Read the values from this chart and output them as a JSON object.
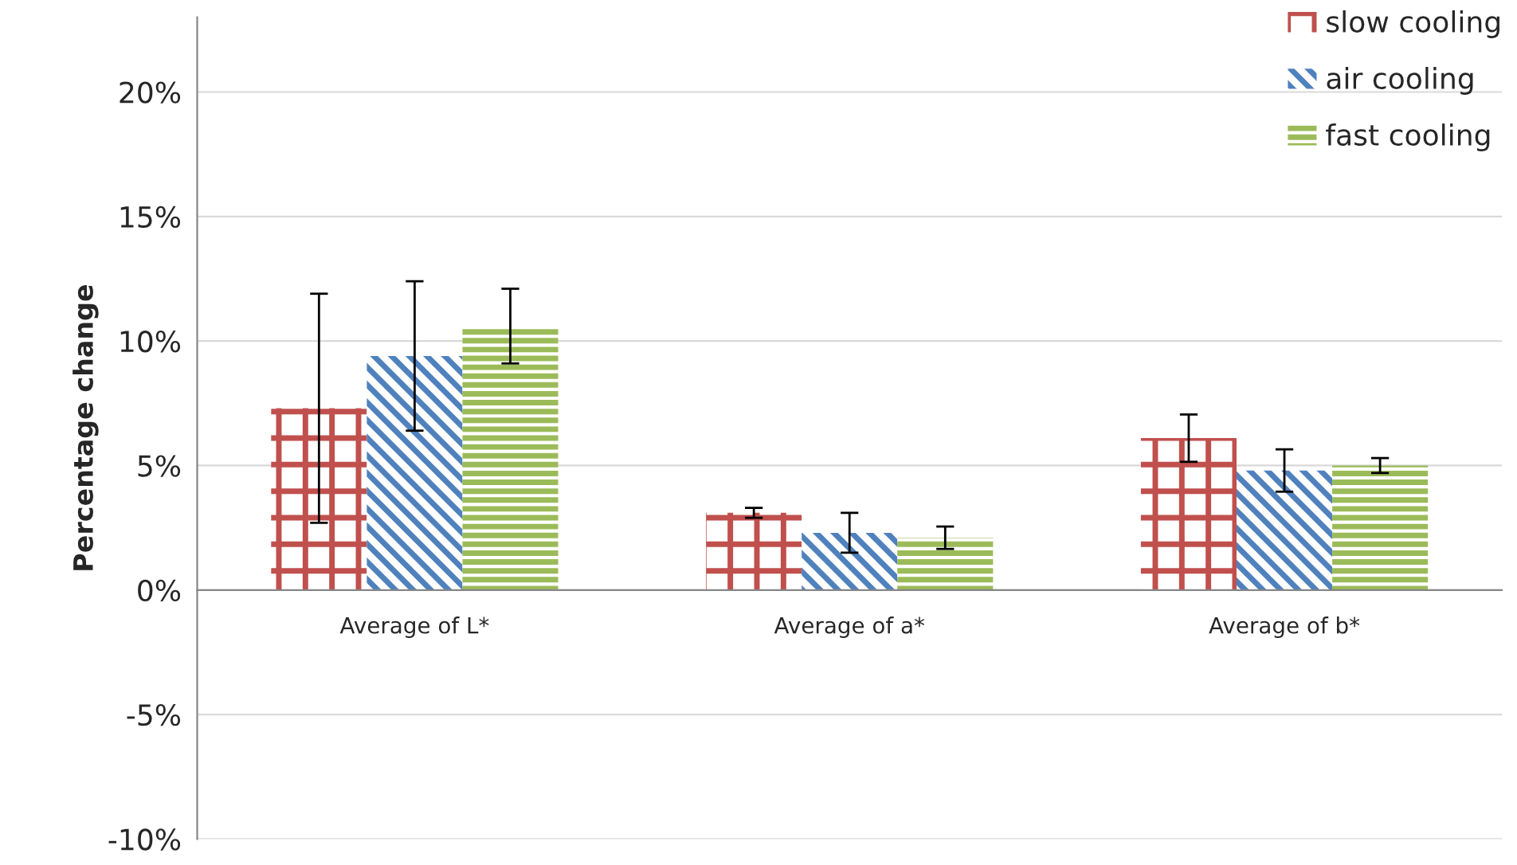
{
  "chart_data": {
    "type": "bar",
    "ylabel": "Percentage change",
    "categories": [
      "Average of L*",
      "Average of a*",
      "Average of b*"
    ],
    "series": [
      {
        "name": "slow cooling",
        "color": "#c0504d",
        "values": [
          7.3,
          3.1,
          6.1
        ],
        "errors": [
          4.6,
          0.2,
          0.95
        ]
      },
      {
        "name": "air cooling",
        "color": "#4f81bd",
        "values": [
          9.4,
          2.3,
          4.8
        ],
        "errors": [
          3.0,
          0.8,
          0.85
        ]
      },
      {
        "name": "fast cooling",
        "color": "#9bbb59",
        "values": [
          10.6,
          2.1,
          5.0
        ],
        "errors": [
          1.5,
          0.45,
          0.3
        ]
      }
    ],
    "ylim": [
      -10,
      23
    ],
    "yticks": [
      {
        "value": -10,
        "label": "-10%"
      },
      {
        "value": -5,
        "label": "-5%"
      },
      {
        "value": 0,
        "label": "0%"
      },
      {
        "value": 5,
        "label": "5%"
      },
      {
        "value": 10,
        "label": "10%"
      },
      {
        "value": 15,
        "label": "15%"
      },
      {
        "value": 20,
        "label": "20%"
      }
    ],
    "grid": "y",
    "legend": "top right"
  }
}
